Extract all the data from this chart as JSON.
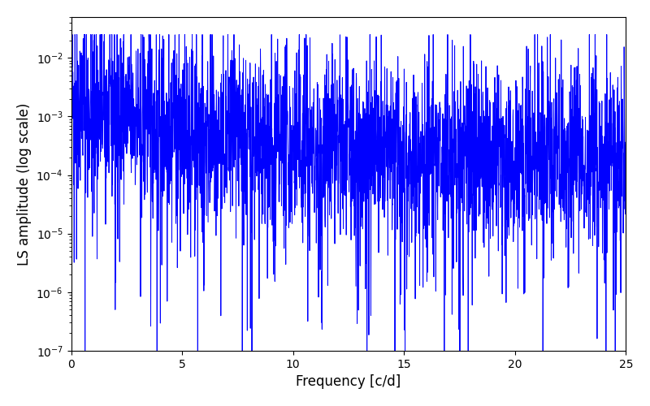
{
  "title": "",
  "xlabel": "Frequency [c/d]",
  "ylabel": "LS amplitude (log scale)",
  "xlim": [
    0,
    25
  ],
  "ylim": [
    1e-07,
    0.05
  ],
  "line_color": "#0000ff",
  "line_width": 0.7,
  "yscale": "log",
  "freq_max": 25.0,
  "n_points": 3000,
  "seed": 42,
  "figsize": [
    8.0,
    5.0
  ],
  "dpi": 100
}
